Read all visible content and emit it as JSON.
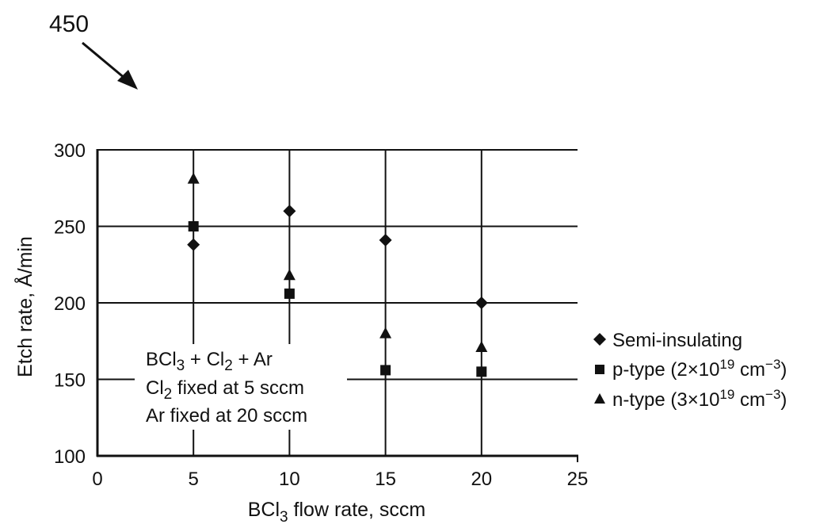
{
  "figure_ref": "450",
  "chart_data": {
    "type": "scatter",
    "xlabel_main": "BCl",
    "xlabel_sub": "3",
    "xlabel_rest": " flow rate, sccm",
    "ylabel": "Etch rate, Å/min",
    "xlim": [
      0,
      25
    ],
    "ylim": [
      100,
      300
    ],
    "x_ticks": [
      "0",
      "5",
      "10",
      "15",
      "20",
      "25"
    ],
    "y_ticks": [
      "300",
      "250",
      "200",
      "150",
      "100"
    ],
    "grid": true,
    "legend_position": "right",
    "series": [
      {
        "name": "Semi-insulating",
        "marker": "diamond",
        "x": [
          5,
          10,
          15,
          20
        ],
        "y": [
          238,
          260,
          241,
          200
        ]
      },
      {
        "name": "p-type (2×10",
        "name_sup": "19",
        "name_mid": " cm",
        "name_sup2": "−3",
        "name_end": ")",
        "marker": "square",
        "x": [
          5,
          10,
          15,
          20
        ],
        "y": [
          250,
          206,
          156,
          155
        ]
      },
      {
        "name": "n-type (3×10",
        "name_sup": "19",
        "name_mid": " cm",
        "name_sup2": "−3",
        "name_end": ")",
        "marker": "triangle",
        "x": [
          5,
          10,
          15,
          20
        ],
        "y": [
          281,
          218,
          180,
          171
        ]
      }
    ],
    "annotation": {
      "line1": {
        "a": "BCl",
        "a_sub": "3",
        "b": " + Cl",
        "b_sub": "2",
        "c": " + Ar"
      },
      "line2": {
        "a": "Cl",
        "a_sub": "2",
        "b": " fixed at 5 sccm"
      },
      "line3": "Ar fixed at 20 sccm"
    }
  }
}
